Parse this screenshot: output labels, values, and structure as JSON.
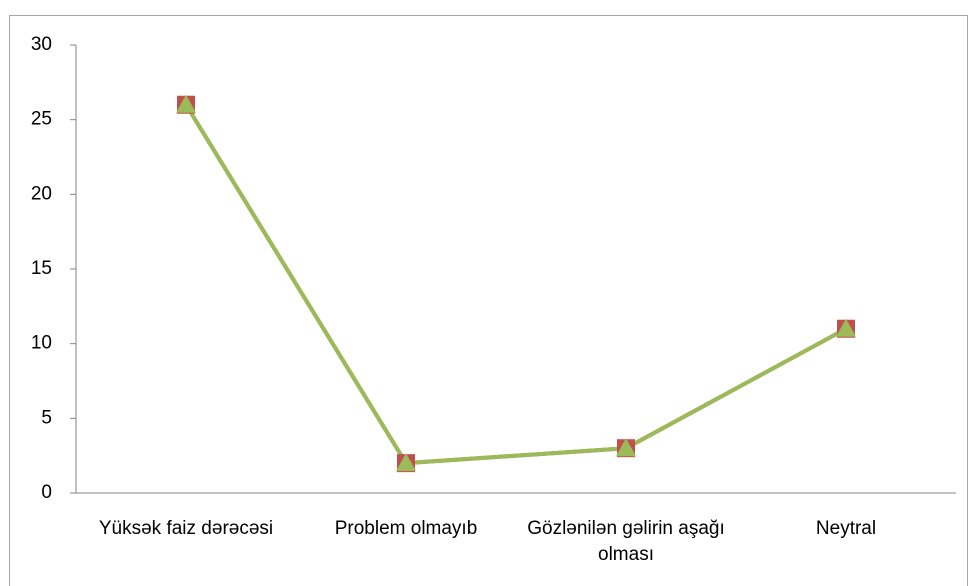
{
  "chart_data": {
    "type": "line",
    "categories": [
      "Yüksək faiz dərəcəsi",
      "Problem olmayıb",
      "Gözlənilən gəlirin aşağı olması",
      "Neytral"
    ],
    "series": [
      {
        "color": "#c0504d",
        "marker": "square",
        "values": [
          26,
          2,
          3,
          11
        ]
      },
      {
        "color": "#9bbb59",
        "marker": "triangle",
        "values": [
          26,
          2,
          3,
          11
        ]
      }
    ],
    "ylim": [
      0,
      30
    ],
    "yticks": [
      0,
      5,
      10,
      15,
      20,
      25,
      30
    ],
    "grid": false
  }
}
